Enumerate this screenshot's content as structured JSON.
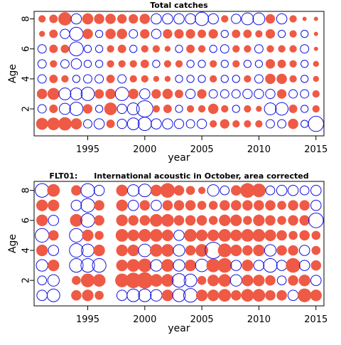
{
  "colors": {
    "positive": "#ee5a45",
    "negative": "#1010e0",
    "frame": "#000000"
  },
  "chart_data": [
    {
      "type": "scatter",
      "subtype": "bubble-residuals",
      "title": "Total catches",
      "xlabel": "year",
      "ylabel": "Age",
      "xlim": [
        1990.3,
        2015.7
      ],
      "ylim": [
        0.2,
        8.5
      ],
      "xticks": [
        1995,
        2000,
        2005,
        2010,
        2015
      ],
      "yticks": [
        2,
        4,
        6,
        8
      ],
      "ages": [
        1,
        2,
        3,
        4,
        5,
        6,
        7,
        8
      ],
      "years": [
        1991,
        1992,
        1993,
        1994,
        1995,
        1996,
        1997,
        1998,
        1999,
        2000,
        2001,
        2002,
        2003,
        2004,
        2005,
        2006,
        2007,
        2008,
        2009,
        2010,
        2011,
        2012,
        2013,
        2014,
        2015
      ],
      "residuals": [
        [
          0.8,
          0.9,
          1.0,
          0.7,
          -0.4,
          -0.6,
          0.4,
          -0.5,
          -0.8,
          -1.0,
          -0.6,
          -0.6,
          -0.5,
          -0.4,
          -0.5,
          0.3,
          0.5,
          0.3,
          0.3,
          0.3,
          -0.4,
          -0.4,
          0.6,
          -0.3,
          -1.3
        ],
        [
          -0.4,
          0.4,
          -0.7,
          -1.0,
          0.5,
          -0.3,
          0.9,
          -0.5,
          -0.8,
          -1.5,
          0.3,
          0.4,
          -0.3,
          0.3,
          0.3,
          0.6,
          0.3,
          -0.3,
          0.3,
          0.2,
          -0.8,
          -0.9,
          0.4,
          -0.3,
          0.3
        ],
        [
          0.6,
          0.8,
          -0.8,
          -0.8,
          -1.0,
          0.5,
          0.6,
          -1.0,
          0.6,
          -0.6,
          0.5,
          0.6,
          0.4,
          -0.5,
          0.5,
          -0.4,
          -0.4,
          -0.4,
          -0.5,
          -0.5,
          -0.5,
          0.5,
          -0.4,
          -0.4,
          0.3
        ],
        [
          -0.4,
          0.4,
          0.3,
          -0.3,
          -0.4,
          -0.4,
          0.4,
          -0.4,
          0.3,
          0.3,
          0.2,
          0.2,
          -0.3,
          -0.3,
          -0.3,
          0.3,
          -0.3,
          -0.3,
          0.3,
          -0.4,
          0.6,
          0.6,
          0.3,
          -0.3,
          0.2
        ],
        [
          -0.4,
          0.3,
          -0.4,
          -0.6,
          -0.3,
          -0.3,
          0.3,
          0.3,
          0.3,
          0.4,
          -0.3,
          0.3,
          0.3,
          -0.3,
          -0.3,
          0.3,
          -0.3,
          0.3,
          -0.3,
          -0.3,
          0.5,
          0.4,
          0.3,
          -0.3,
          0.2
        ],
        [
          -0.4,
          0.4,
          0.4,
          -1.1,
          -0.3,
          -0.3,
          0.3,
          0.4,
          -0.3,
          0.3,
          0.3,
          0.2,
          -0.3,
          0.4,
          0.3,
          -0.3,
          -0.4,
          0.3,
          0.3,
          -0.4,
          0.3,
          0.3,
          0.3,
          -0.4,
          0.1
        ],
        [
          0.2,
          0.4,
          -0.5,
          -1.0,
          0.6,
          -0.3,
          0.6,
          0.6,
          -0.4,
          0.5,
          -0.5,
          0.5,
          0.5,
          0.5,
          0.4,
          0.5,
          -0.3,
          0.4,
          0.4,
          0.3,
          0.5,
          -0.3,
          0.3,
          -0.3,
          0.1
        ],
        [
          0.3,
          0.4,
          1.0,
          -0.6,
          0.7,
          0.6,
          0.6,
          0.5,
          0.5,
          0.6,
          -0.6,
          -0.6,
          -0.6,
          -0.6,
          -1.0,
          -0.6,
          0.3,
          -0.5,
          -0.8,
          -0.8,
          0.5,
          -0.6,
          0.3,
          0.1,
          0.1
        ]
      ]
    },
    {
      "type": "scatter",
      "subtype": "bubble-residuals",
      "title": "FLT01:      International acoustic in October, area corrected",
      "xlabel": "year",
      "ylabel": "Age",
      "xlim": [
        1990.3,
        2015.7
      ],
      "ylim": [
        0.3,
        8.6
      ],
      "xticks": [
        1995,
        2000,
        2005,
        2010,
        2015
      ],
      "yticks": [
        2,
        4,
        6,
        8
      ],
      "ages": [
        1,
        2,
        3,
        4,
        5,
        6,
        7,
        8
      ],
      "years": [
        1991,
        1992,
        1993,
        1994,
        1995,
        1996,
        1997,
        1998,
        1999,
        2000,
        2001,
        2002,
        2003,
        2004,
        2005,
        2006,
        2007,
        2008,
        2009,
        2010,
        2011,
        2012,
        2013,
        2014,
        2015
      ],
      "missing_years": [
        1993,
        1997
      ],
      "residuals": [
        [
          -0.4,
          -0.6,
          null,
          0.4,
          0.5,
          0.3,
          null,
          -0.4,
          -0.6,
          -0.6,
          -0.5,
          0.5,
          -0.6,
          -0.7,
          0.5,
          0.5,
          0.6,
          0.4,
          0.6,
          0.6,
          0.4,
          0.4,
          -0.4,
          0.7,
          0.5
        ],
        [
          -0.3,
          -0.5,
          null,
          0.3,
          0.7,
          0.6,
          null,
          0.7,
          0.9,
          1.0,
          0.6,
          0.6,
          -0.7,
          -0.6,
          0.3,
          0.5,
          0.6,
          -0.5,
          0.5,
          0.5,
          0.4,
          -0.3,
          0.4,
          0.5,
          -0.4
        ],
        [
          -0.5,
          0.5,
          null,
          -0.7,
          -0.7,
          -0.7,
          null,
          0.5,
          0.6,
          0.7,
          -0.5,
          0.6,
          -0.5,
          0.5,
          -0.6,
          0.7,
          0.8,
          -0.4,
          0.5,
          -0.4,
          -0.7,
          -0.4,
          0.8,
          -0.4,
          0.4
        ],
        [
          0.5,
          -0.4,
          null,
          -0.7,
          -0.6,
          0.5,
          null,
          0.5,
          0.5,
          -0.6,
          0.6,
          0.6,
          -0.5,
          0.4,
          0.6,
          -1.0,
          0.7,
          0.5,
          0.4,
          0.5,
          -0.5,
          0.4,
          0.4,
          -0.4,
          0.3
        ],
        [
          -0.7,
          0.4,
          null,
          -0.7,
          0.5,
          0.3,
          null,
          0.6,
          0.5,
          0.6,
          0.6,
          0.5,
          -0.4,
          0.6,
          0.5,
          0.5,
          0.6,
          0.5,
          0.6,
          0.6,
          0.5,
          0.4,
          0.3,
          0.4,
          0.3
        ],
        [
          0.5,
          -0.4,
          null,
          0.6,
          -0.7,
          0.4,
          null,
          0.5,
          0.4,
          0.4,
          0.6,
          0.6,
          0.4,
          0.4,
          0.4,
          0.3,
          0.5,
          0.5,
          0.3,
          0.5,
          0.4,
          0.3,
          0.4,
          0.4,
          -0.8
        ],
        [
          0.5,
          0.5,
          null,
          -0.4,
          -0.7,
          0.4,
          null,
          0.5,
          -0.4,
          0.4,
          -0.4,
          0.4,
          0.4,
          0.4,
          0.3,
          0.3,
          0.4,
          0.4,
          0.4,
          0.4,
          0.4,
          0.3,
          0.4,
          0.4,
          -0.4
        ],
        [
          -0.7,
          0.6,
          null,
          0.4,
          -0.7,
          -0.4,
          null,
          0.5,
          -0.5,
          -0.6,
          0.5,
          0.8,
          0.4,
          0.3,
          0.2,
          -0.5,
          -0.3,
          0.4,
          0.8,
          0.7,
          -0.3,
          -0.4,
          -0.4,
          -0.3,
          -0.4
        ]
      ]
    }
  ]
}
